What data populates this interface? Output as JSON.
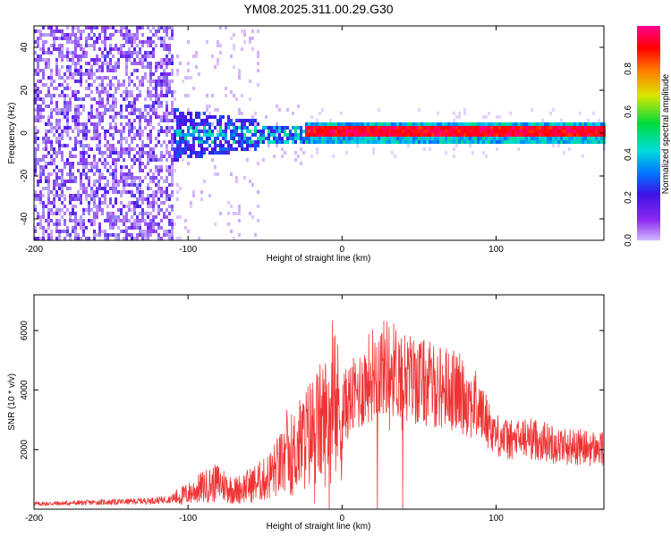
{
  "title": "YM08.2025.311.00.29.G30",
  "chart_data": [
    {
      "type": "heatmap",
      "xlabel": "Height of straight line (km)",
      "ylabel": "Frequency (Hz)",
      "xlim": [
        -200,
        170
      ],
      "ylim": [
        -50,
        50
      ],
      "xticks": [
        -200,
        -100,
        0,
        100
      ],
      "yticks": [
        -40,
        -20,
        0,
        20,
        40
      ],
      "colorbar": {
        "label": "Normalized spectral amplitude",
        "range": [
          0,
          1
        ],
        "ticks": [
          0.0,
          0.2,
          0.4,
          0.6,
          0.8
        ]
      },
      "features": {
        "broadband_noise_end_km": -110,
        "scatter_end_km": -55,
        "carrier_start_km": -25,
        "carrier_freq_hz": 0
      }
    },
    {
      "type": "line",
      "xlabel": "Height of straight line (km)",
      "ylabel": "SNR (10 * v/v)",
      "xlim": [
        -200,
        170
      ],
      "ylim": [
        0,
        7200
      ],
      "xticks": [
        -200,
        -100,
        0,
        100
      ],
      "yticks": [
        2000,
        4000,
        6000
      ],
      "series": [
        {
          "name": "SNR",
          "color": "#ee3333",
          "x": [
            -200,
            -180,
            -160,
            -140,
            -120,
            -110,
            -100,
            -90,
            -80,
            -70,
            -60,
            -50,
            -40,
            -30,
            -20,
            -10,
            0,
            10,
            20,
            30,
            40,
            50,
            60,
            70,
            80,
            90,
            100,
            110,
            120,
            130,
            140,
            150,
            160,
            170
          ],
          "y": [
            180,
            200,
            230,
            250,
            300,
            350,
            520,
            750,
            900,
            620,
            800,
            1000,
            1500,
            2000,
            2600,
            3000,
            3400,
            3900,
            4600,
            4800,
            4500,
            4300,
            4150,
            4050,
            3800,
            3300,
            2500,
            2300,
            2400,
            2300,
            2150,
            2100,
            2050,
            2000
          ]
        }
      ]
    }
  ]
}
